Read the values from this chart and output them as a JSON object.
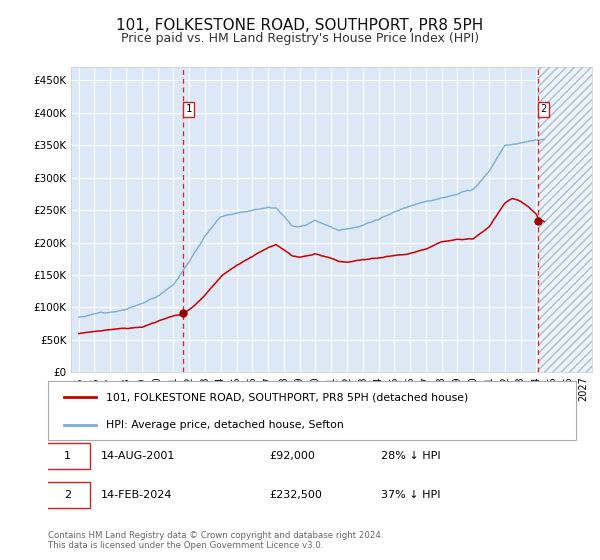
{
  "title": "101, FOLKESTONE ROAD, SOUTHPORT, PR8 5PH",
  "subtitle": "Price paid vs. HM Land Registry's House Price Index (HPI)",
  "title_fontsize": 11,
  "subtitle_fontsize": 9,
  "background_color": "#ffffff",
  "plot_bg_color": "#dce8f5",
  "grid_color": "#ffffff",
  "red_line_color": "#cc0000",
  "blue_line_color": "#7aaed6",
  "marker_color": "#990000",
  "yticks": [
    0,
    50000,
    100000,
    150000,
    200000,
    250000,
    300000,
    350000,
    400000,
    450000
  ],
  "ytick_labels": [
    "£0",
    "£50K",
    "£100K",
    "£150K",
    "£200K",
    "£250K",
    "£300K",
    "£350K",
    "£400K",
    "£450K"
  ],
  "xmin": 1994.5,
  "xmax": 2027.5,
  "ymin": 0,
  "ymax": 470000,
  "transaction1_x": 2001.617,
  "transaction1_y": 92000,
  "transaction2_x": 2024.117,
  "transaction2_y": 232500,
  "transaction1_date": "14-AUG-2001",
  "transaction1_price": "£92,000",
  "transaction1_note": "28% ↓ HPI",
  "transaction2_date": "14-FEB-2024",
  "transaction2_price": "£232,500",
  "transaction2_note": "37% ↓ HPI",
  "legend_line1": "101, FOLKESTONE ROAD, SOUTHPORT, PR8 5PH (detached house)",
  "legend_line2": "HPI: Average price, detached house, Sefton",
  "footer1": "Contains HM Land Registry data © Crown copyright and database right 2024.",
  "footer2": "This data is licensed under the Open Government Licence v3.0.",
  "xticks": [
    1995,
    1996,
    1997,
    1998,
    1999,
    2000,
    2001,
    2002,
    2003,
    2004,
    2005,
    2006,
    2007,
    2008,
    2009,
    2010,
    2011,
    2012,
    2013,
    2014,
    2015,
    2016,
    2017,
    2018,
    2019,
    2020,
    2021,
    2022,
    2023,
    2024,
    2025,
    2026,
    2027
  ]
}
